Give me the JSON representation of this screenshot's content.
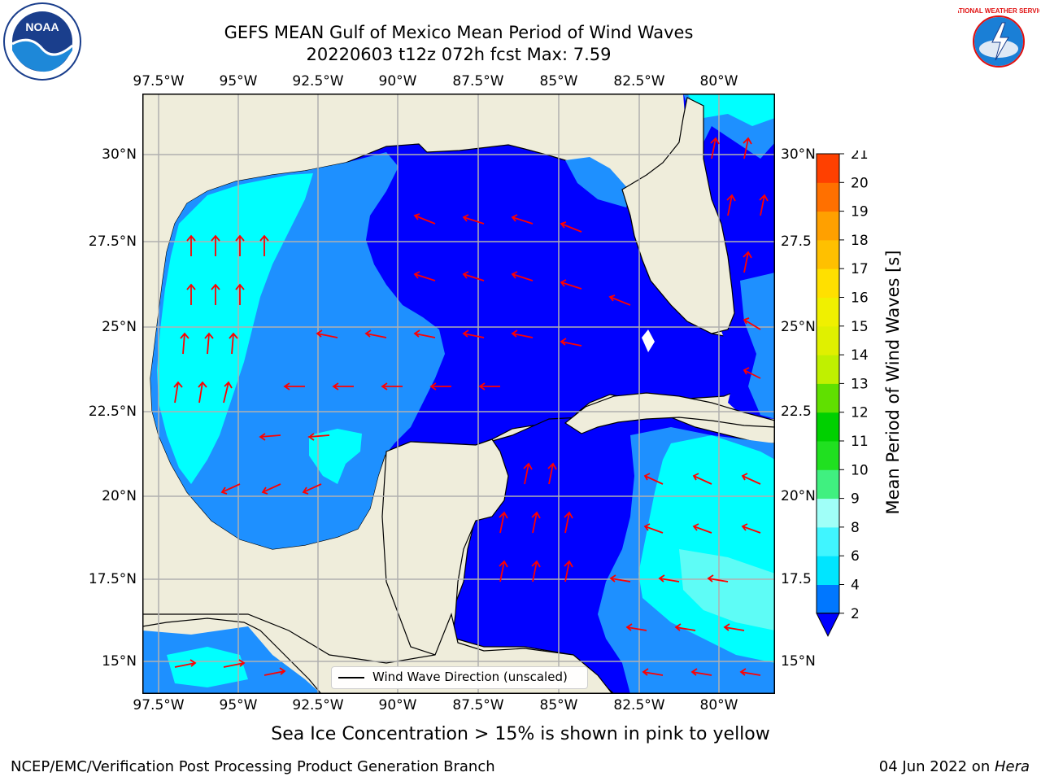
{
  "header": {
    "title_line1": "GEFS MEAN Gulf of Mexico Mean Period of Wind Waves",
    "title_line2": "20220603 t12z 072h fcst   Max: 7.59"
  },
  "map": {
    "lon_ticks": [
      "97.5°W",
      "95°W",
      "92.5°W",
      "90°W",
      "87.5°W",
      "85°W",
      "82.5°W",
      "80°W"
    ],
    "lat_ticks_left": [
      "30°N",
      "27.5°N",
      "25°N",
      "22.5°N",
      "20°N",
      "17.5°N",
      "15°N"
    ],
    "lat_ticks_right": [
      "30°N",
      "27.5",
      "25°N",
      "22.5",
      "20°N",
      "17.5",
      "15°N"
    ],
    "legend_label": "Wind Wave Direction (unscaled)",
    "colors": {
      "land": "#efeddb",
      "ocean_2_4": "#0000ff",
      "ocean_4_6": "#1e90ff",
      "ocean_6_8": "#00ffff",
      "ocean_8_9": "#5efcf6",
      "arrow": "#ff0000",
      "gridline": "#b0b0b0"
    }
  },
  "colorbar": {
    "label": "Mean Period of Wind Waves [s]",
    "tick_labels": [
      "2",
      "4",
      "6",
      "8",
      "9",
      "10",
      "11",
      "12",
      "13",
      "14",
      "15",
      "16",
      "17",
      "18",
      "19",
      "20",
      "21"
    ],
    "colors": [
      "#0077ff",
      "#00e5ff",
      "#40f5ff",
      "#a0fff8",
      "#40f080",
      "#20e020",
      "#00d000",
      "#60e000",
      "#c0f000",
      "#e0f000",
      "#f0f000",
      "#ffe000",
      "#ffc000",
      "#ffa000",
      "#ff7000",
      "#ff4000",
      "#ff1000"
    ],
    "extend_color": "#0000ff"
  },
  "notes": {
    "sea_ice": "Sea Ice Concentration > 15% is shown in pink to yellow"
  },
  "footer": {
    "left": "NCEP/EMC/Verification Post Processing Product Generation Branch",
    "date": "04 Jun 2022 on ",
    "machine": "Hera"
  },
  "logos": {
    "noaa_text": "NOAA",
    "nws_text": "NATIONAL WEATHER SERVICE"
  }
}
